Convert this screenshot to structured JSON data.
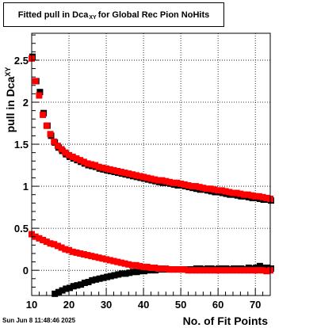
{
  "chart_data": {
    "type": "scatter",
    "title_main": "Fitted pull in Dca",
    "title_sub": "XY",
    "title_rest": "for Global Rec Pion NoHits",
    "xlabel": "No. of Fit Points",
    "ylabel_main": "pull in Dca",
    "ylabel_sub": "XY",
    "xlim": [
      10,
      74
    ],
    "ylim": [
      -0.3,
      2.82
    ],
    "xticks": [
      10,
      20,
      30,
      40,
      50,
      60,
      70
    ],
    "yticks": [
      0,
      0.5,
      1,
      1.5,
      2,
      2.5
    ],
    "grid": true,
    "series": [
      {
        "color": "#000000",
        "x": [
          10,
          11,
          12,
          13,
          14,
          15,
          16,
          17,
          18,
          19,
          20,
          21,
          22,
          23,
          24,
          25,
          26,
          27,
          28,
          29,
          30,
          31,
          32,
          33,
          34,
          35,
          36,
          37,
          38,
          39,
          40,
          41,
          42,
          43,
          44,
          45,
          46,
          47,
          48,
          49,
          50,
          51,
          52,
          53,
          54,
          55,
          56,
          57,
          58,
          59,
          60,
          61,
          62,
          63,
          64,
          65,
          66,
          67,
          68,
          69,
          70,
          71,
          72,
          73,
          74
        ],
        "y": [
          2.55,
          2.26,
          2.13,
          1.88,
          1.73,
          1.61,
          1.53,
          1.47,
          1.43,
          1.39,
          1.36,
          1.34,
          1.32,
          1.3,
          1.28,
          1.26,
          1.25,
          1.24,
          1.22,
          1.21,
          1.2,
          1.19,
          1.18,
          1.17,
          1.16,
          1.15,
          1.14,
          1.13,
          1.12,
          1.11,
          1.1,
          1.09,
          1.08,
          1.07,
          1.06,
          1.05,
          1.05,
          1.04,
          1.03,
          1.02,
          1.02,
          1.01,
          1.0,
          0.99,
          0.98,
          0.97,
          0.97,
          0.96,
          0.95,
          0.94,
          0.94,
          0.93,
          0.92,
          0.91,
          0.91,
          0.9,
          0.89,
          0.89,
          0.88,
          0.87,
          0.87,
          0.86,
          0.85,
          0.85,
          0.84
        ]
      },
      {
        "color": "#ff0000",
        "x": [
          10,
          11,
          12,
          13,
          14,
          15,
          16,
          17,
          18,
          19,
          20,
          21,
          22,
          23,
          24,
          25,
          26,
          27,
          28,
          29,
          30,
          31,
          32,
          33,
          34,
          35,
          36,
          37,
          38,
          39,
          40,
          41,
          42,
          43,
          44,
          45,
          46,
          47,
          48,
          49,
          50,
          51,
          52,
          53,
          54,
          55,
          56,
          57,
          58,
          59,
          60,
          61,
          62,
          63,
          64,
          65,
          66,
          67,
          68,
          69,
          70,
          71,
          72,
          73,
          74
        ],
        "y": [
          2.52,
          2.25,
          2.08,
          1.85,
          1.72,
          1.62,
          1.53,
          1.48,
          1.44,
          1.4,
          1.37,
          1.35,
          1.33,
          1.31,
          1.29,
          1.27,
          1.26,
          1.25,
          1.23,
          1.22,
          1.21,
          1.2,
          1.19,
          1.18,
          1.17,
          1.16,
          1.15,
          1.14,
          1.13,
          1.12,
          1.11,
          1.1,
          1.09,
          1.08,
          1.07,
          1.07,
          1.06,
          1.05,
          1.04,
          1.04,
          1.03,
          1.02,
          1.01,
          1.0,
          1.0,
          0.99,
          0.98,
          0.97,
          0.97,
          0.96,
          0.95,
          0.95,
          0.94,
          0.93,
          0.92,
          0.92,
          0.91,
          0.9,
          0.9,
          0.89,
          0.88,
          0.88,
          0.87,
          0.86,
          0.85
        ]
      },
      {
        "color": "#000000",
        "x": [
          16,
          17,
          18,
          19,
          20,
          21,
          22,
          23,
          24,
          25,
          26,
          27,
          28,
          29,
          30,
          31,
          32,
          33,
          34,
          35,
          36,
          37,
          38,
          39,
          40,
          41,
          42,
          43,
          44,
          45,
          46,
          47,
          48,
          49,
          50,
          51,
          52,
          53,
          54,
          55,
          56,
          57,
          58,
          59,
          60,
          61,
          62,
          63,
          64,
          65,
          66,
          67,
          68,
          69,
          70,
          71,
          72,
          73,
          74
        ],
        "y": [
          -0.27,
          -0.25,
          -0.23,
          -0.21,
          -0.2,
          -0.18,
          -0.17,
          -0.16,
          -0.14,
          -0.13,
          -0.11,
          -0.1,
          -0.09,
          -0.08,
          -0.07,
          -0.06,
          -0.05,
          -0.04,
          -0.03,
          -0.03,
          -0.02,
          -0.01,
          -0.01,
          0.0,
          0.0,
          0.01,
          0.01,
          0.01,
          0.02,
          0.02,
          0.02,
          0.02,
          0.02,
          0.02,
          0.02,
          0.02,
          0.02,
          0.02,
          0.03,
          0.03,
          0.02,
          0.03,
          0.03,
          0.02,
          0.03,
          0.03,
          0.03,
          0.02,
          0.03,
          0.03,
          0.03,
          0.02,
          0.04,
          0.03,
          0.04,
          0.06,
          0.04,
          0.04,
          0.03
        ]
      },
      {
        "color": "#ff0000",
        "x": [
          10,
          11,
          12,
          13,
          14,
          15,
          16,
          17,
          18,
          19,
          20,
          21,
          22,
          23,
          24,
          25,
          26,
          27,
          28,
          29,
          30,
          31,
          32,
          33,
          34,
          35,
          36,
          37,
          38,
          39,
          40,
          41,
          42,
          43,
          44,
          45,
          46,
          47,
          48,
          49,
          50,
          51,
          52,
          53,
          54,
          55,
          56,
          57,
          58,
          59,
          60,
          61,
          62,
          63,
          64,
          65,
          66,
          67,
          68,
          69,
          70,
          71,
          72,
          73,
          74
        ],
        "y": [
          0.43,
          0.4,
          0.38,
          0.36,
          0.34,
          0.32,
          0.31,
          0.29,
          0.27,
          0.25,
          0.24,
          0.22,
          0.21,
          0.2,
          0.19,
          0.18,
          0.17,
          0.16,
          0.15,
          0.14,
          0.13,
          0.12,
          0.11,
          0.1,
          0.09,
          0.08,
          0.07,
          0.06,
          0.06,
          0.05,
          0.04,
          0.04,
          0.03,
          0.03,
          0.02,
          0.02,
          0.02,
          0.01,
          0.01,
          0.01,
          0.01,
          0.01,
          0.0,
          0.0,
          0.0,
          0.0,
          0.0,
          0.0,
          0.0,
          0.0,
          0.0,
          0.0,
          0.0,
          0.0,
          0.0,
          0.0,
          0.0,
          0.0,
          0.0,
          0.0,
          0.0,
          0.0,
          0.0,
          -0.01,
          0.0
        ]
      }
    ]
  },
  "timestamp": "Sun Jun  8 11:48:46 2025"
}
